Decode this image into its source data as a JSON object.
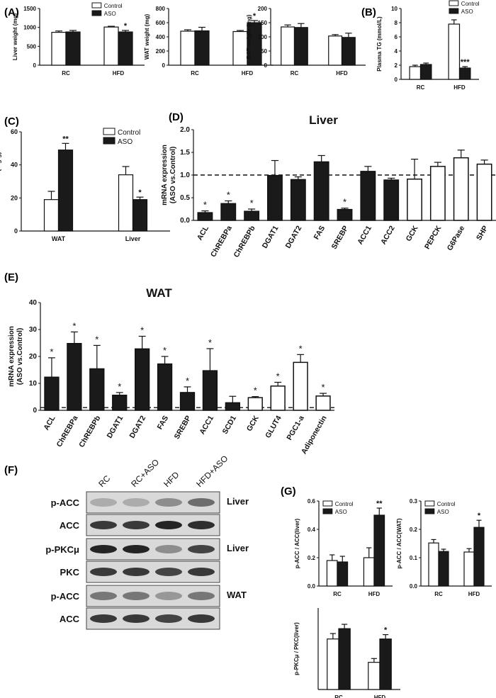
{
  "panel_labels": {
    "A": "(A)",
    "B": "(B)",
    "C": "(C)",
    "D": "(D)",
    "E": "(E)",
    "F": "(F)",
    "G": "(G)"
  },
  "legend": {
    "control": "Control",
    "aso": "ASO"
  },
  "colors": {
    "control": "#ffffff",
    "aso": "#1a1a1a",
    "stroke": "#111111"
  },
  "chart_data": [
    {
      "id": "liver_weight",
      "type": "bar",
      "ylabel": "Liver weight (mg)",
      "categories": [
        "RC",
        "HFD"
      ],
      "ylim": [
        0,
        1500
      ],
      "yticks": [
        0,
        500,
        1000,
        1500
      ],
      "series": [
        {
          "name": "Control",
          "values": [
            870,
            1010
          ],
          "errors": [
            35,
            20
          ]
        },
        {
          "name": "ASO",
          "values": [
            880,
            880
          ],
          "errors": [
            40,
            40
          ]
        }
      ],
      "annotations": [
        {
          "category": 1,
          "series": 1,
          "text": "*"
        }
      ],
      "legend": "top-right"
    },
    {
      "id": "wat_weight",
      "type": "bar",
      "ylabel": "WAT weight (mg)",
      "categories": [
        "RC",
        "HFD"
      ],
      "ylim": [
        0,
        800
      ],
      "yticks": [
        0,
        200,
        400,
        600,
        800
      ],
      "series": [
        {
          "name": "Control",
          "values": [
            480,
            475
          ],
          "errors": [
            20,
            15
          ]
        },
        {
          "name": "ASO",
          "values": [
            485,
            600
          ],
          "errors": [
            50,
            30
          ]
        }
      ],
      "annotations": [
        {
          "category": 1,
          "series": 1,
          "text": "*"
        }
      ]
    },
    {
      "id": "bat_weight",
      "type": "bar",
      "ylabel": "BAT weight (mg)",
      "categories": [
        "RC",
        "HFD"
      ],
      "ylim": [
        0,
        200
      ],
      "yticks": [
        0,
        50,
        100,
        150,
        200
      ],
      "series": [
        {
          "name": "Control",
          "values": [
            135,
            103
          ],
          "errors": [
            7,
            5
          ]
        },
        {
          "name": "ASO",
          "values": [
            133,
            98
          ],
          "errors": [
            14,
            15
          ]
        }
      ],
      "annotations": []
    },
    {
      "id": "plasma_tg",
      "type": "bar",
      "ylabel": "Plasma TG (mmol/L)",
      "categories": [
        "RC",
        "HFD"
      ],
      "ylim": [
        0,
        10
      ],
      "yticks": [
        0,
        2,
        4,
        6,
        8,
        10
      ],
      "series": [
        {
          "name": "Control",
          "values": [
            1.8,
            7.8
          ],
          "errors": [
            0.2,
            0.6
          ]
        },
        {
          "name": "ASO",
          "values": [
            2.1,
            1.6
          ],
          "errors": [
            0.2,
            0.2
          ]
        }
      ],
      "annotations": [
        {
          "category": 1,
          "series": 1,
          "text": "***"
        }
      ],
      "legend": "top-right"
    },
    {
      "id": "tag_content",
      "type": "bar",
      "ylabel": "TAG content (mg/g)",
      "categories": [
        "WAT",
        "Liver"
      ],
      "ylim": [
        0,
        60
      ],
      "yticks": [
        0,
        20,
        40,
        60
      ],
      "series": [
        {
          "name": "Control",
          "values": [
            19,
            34
          ],
          "errors": [
            5,
            5
          ]
        },
        {
          "name": "ASO",
          "values": [
            49,
            19
          ],
          "errors": [
            4,
            1.5
          ]
        }
      ],
      "annotations": [
        {
          "category": 0,
          "series": 1,
          "text": "**"
        },
        {
          "category": 1,
          "series": 1,
          "text": "*"
        }
      ],
      "legend": "top-right"
    },
    {
      "id": "liver_mrna",
      "type": "bar",
      "title": "Liver",
      "ylabel": "mRNA expression\n(ASO vs.Control)",
      "ylim": [
        0,
        2.0
      ],
      "yticks": [
        "0.0",
        "0.5",
        "1.0",
        "1.5",
        "2.0"
      ],
      "reference_line": 1.0,
      "categories": [
        "ACL",
        "ChREBPa",
        "ChREBPb",
        "DGAT1",
        "DGAT2",
        "FAS",
        "SREBP",
        "ACC1",
        "ACC2",
        "GCK",
        "PEPCK",
        "G6Pase",
        "SHP"
      ],
      "values": [
        0.17,
        0.37,
        0.2,
        0.99,
        0.9,
        1.29,
        0.24,
        1.08,
        0.89,
        0.91,
        1.19,
        1.38,
        1.24
      ],
      "errors": [
        0.04,
        0.06,
        0.05,
        0.33,
        0.06,
        0.14,
        0.03,
        0.11,
        0.04,
        0.44,
        0.09,
        0.17,
        0.09
      ],
      "fill": [
        "aso",
        "aso",
        "aso",
        "aso",
        "aso",
        "aso",
        "aso",
        "aso",
        "aso",
        "control",
        "control",
        "control",
        "control"
      ],
      "significance": [
        "*",
        "*",
        "*",
        "",
        "",
        "",
        "*",
        "",
        "",
        "",
        "",
        "",
        ""
      ]
    },
    {
      "id": "wat_mrna",
      "type": "bar",
      "title": "WAT",
      "ylabel": "mRNA expression\n(ASO vs.Control)",
      "ylim": [
        0,
        40
      ],
      "yticks": [
        0,
        10,
        20,
        30,
        40
      ],
      "reference_line": 1.0,
      "categories": [
        "ACL",
        "ChREBPa",
        "ChREBPb",
        "DGAT1",
        "DGAT2",
        "FAS",
        "SREBP",
        "ACC1",
        "SCD1",
        "GCK",
        "GLUT4",
        "PGC1-a",
        "Adiponectin"
      ],
      "values": [
        12.3,
        24.8,
        15.4,
        5.6,
        22.8,
        17.2,
        6.6,
        14.7,
        2.8,
        4.7,
        9.0,
        17.8,
        5.3
      ],
      "errors": [
        7.2,
        4.3,
        8.7,
        1.0,
        4.7,
        2.8,
        2.1,
        8.2,
        2.4,
        0.4,
        1.4,
        2.9,
        1.0
      ],
      "fill": [
        "aso",
        "aso",
        "aso",
        "aso",
        "aso",
        "aso",
        "aso",
        "aso",
        "aso",
        "control",
        "control",
        "control",
        "control"
      ],
      "significance": [
        "*",
        "*",
        "*",
        "*",
        "*",
        "*",
        "*",
        "*",
        "",
        "*",
        "*",
        "*",
        "*"
      ]
    },
    {
      "id": "pacc_acc_liver",
      "type": "bar",
      "ylabel": "p-ACC / ACC(liver)",
      "categories": [
        "RC",
        "HFD"
      ],
      "ylim": [
        0,
        0.6
      ],
      "yticks": [
        "0.0",
        "0.2",
        "0.4",
        "0.6"
      ],
      "series": [
        {
          "name": "Control",
          "values": [
            0.18,
            0.2
          ],
          "errors": [
            0.04,
            0.07
          ]
        },
        {
          "name": "ASO",
          "values": [
            0.17,
            0.5
          ],
          "errors": [
            0.04,
            0.05
          ]
        }
      ],
      "annotations": [
        {
          "category": 1,
          "series": 1,
          "text": "**"
        }
      ],
      "legend": "top"
    },
    {
      "id": "pacc_acc_wat",
      "type": "bar",
      "ylabel": "p-ACC / ACC(WAT)",
      "categories": [
        "RC",
        "HFD"
      ],
      "ylim": [
        0,
        0.3
      ],
      "yticks": [
        "0.0",
        "0.1",
        "0.2",
        "0.3"
      ],
      "series": [
        {
          "name": "Control",
          "values": [
            0.152,
            0.12
          ],
          "errors": [
            0.012,
            0.012
          ]
        },
        {
          "name": "ASO",
          "values": [
            0.122,
            0.207
          ],
          "errors": [
            0.008,
            0.025
          ]
        }
      ],
      "annotations": [
        {
          "category": 1,
          "series": 1,
          "text": "*"
        }
      ],
      "legend": "top"
    },
    {
      "id": "ppkc_pkc_liver",
      "type": "bar",
      "ylabel": "p-PKCμ / PKC(liver)",
      "categories": [
        "RC",
        "HFD"
      ],
      "ylim": [
        0,
        1.5
      ],
      "yticks": [],
      "series": [
        {
          "name": "Control",
          "values": [
            0.93,
            0.5
          ],
          "errors": [
            0.1,
            0.07
          ]
        },
        {
          "name": "ASO",
          "values": [
            1.12,
            0.93
          ],
          "errors": [
            0.08,
            0.08
          ]
        }
      ],
      "annotations": [
        {
          "category": 1,
          "series": 1,
          "text": "*"
        }
      ]
    }
  ],
  "western_blot": {
    "lanes": [
      "RC",
      "RC+ASO",
      "HFD",
      "HFD+ASO"
    ],
    "rows": [
      {
        "label": "p-ACC",
        "intensity": [
          0.3,
          0.3,
          0.45,
          0.6
        ]
      },
      {
        "label": "ACC",
        "intensity": [
          0.85,
          0.85,
          0.95,
          0.9
        ]
      },
      {
        "label": "p-PKCμ",
        "intensity": [
          0.95,
          0.95,
          0.45,
          0.8
        ]
      },
      {
        "label": "PKC",
        "intensity": [
          0.85,
          0.85,
          0.8,
          0.85
        ]
      },
      {
        "label": "p-ACC",
        "intensity": [
          0.55,
          0.55,
          0.4,
          0.55
        ]
      },
      {
        "label": "ACC",
        "intensity": [
          0.85,
          0.85,
          0.8,
          0.85
        ]
      }
    ],
    "tissues": [
      "Liver",
      "Liver",
      "WAT"
    ]
  }
}
